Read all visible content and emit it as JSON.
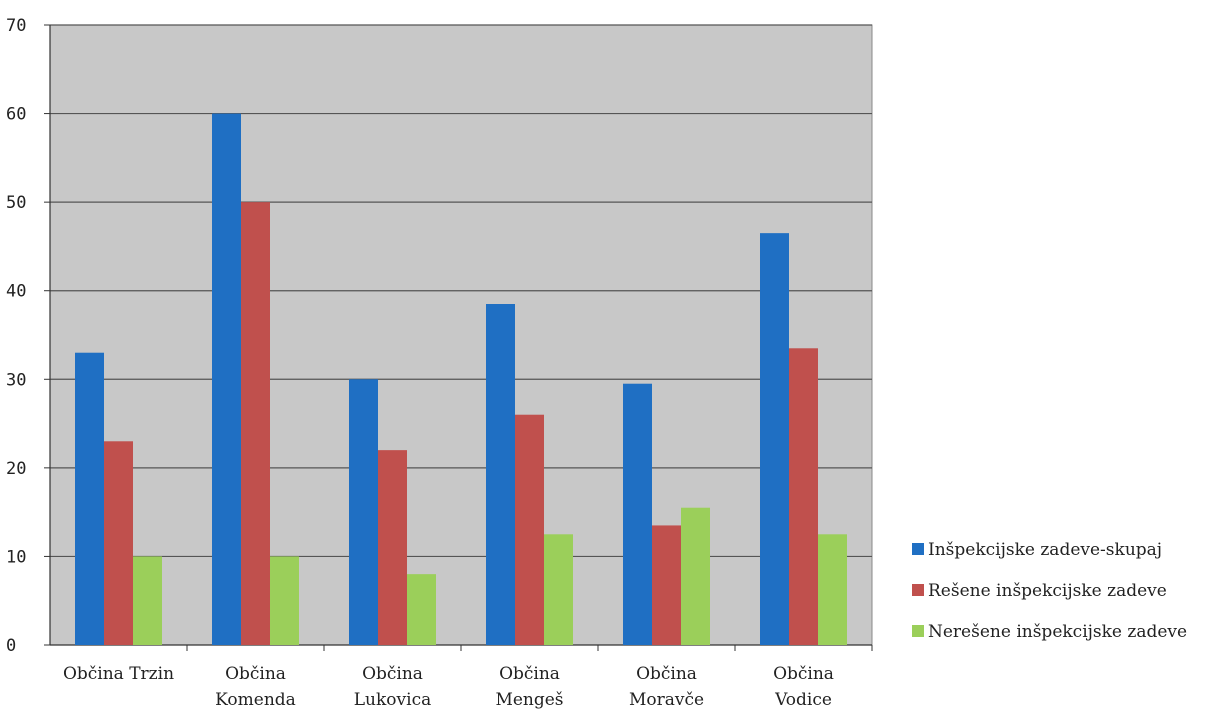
{
  "chart_data": {
    "type": "bar",
    "categories": [
      [
        "Občina Trzin"
      ],
      [
        "Občina",
        "Komenda"
      ],
      [
        "Občina",
        "Lukovica"
      ],
      [
        "Občina",
        "Mengeš"
      ],
      [
        "Občina",
        "Moravče"
      ],
      [
        "Občina",
        "Vodice"
      ]
    ],
    "series": [
      {
        "name": "Inšpekcijske zadeve-skupaj",
        "color": "#1f6fc3",
        "values": [
          33,
          60,
          30,
          38.5,
          29.5,
          46.5
        ]
      },
      {
        "name": "Rešene inšpekcijske zadeve",
        "color": "#c0504d",
        "values": [
          23,
          50,
          22,
          26,
          13.5,
          33.5
        ]
      },
      {
        "name": "Nerešene inšpekcijske zadeve",
        "color": "#9bcf5a",
        "values": [
          10,
          10,
          8,
          12.5,
          15.5,
          12.5
        ]
      }
    ],
    "ylim": [
      0,
      70
    ],
    "yticks": [
      0,
      10,
      20,
      30,
      40,
      50,
      60,
      70
    ],
    "grid": true,
    "legend_position": "right",
    "plot_background": "#c8c8c8",
    "title": "",
    "xlabel": "",
    "ylabel": ""
  }
}
